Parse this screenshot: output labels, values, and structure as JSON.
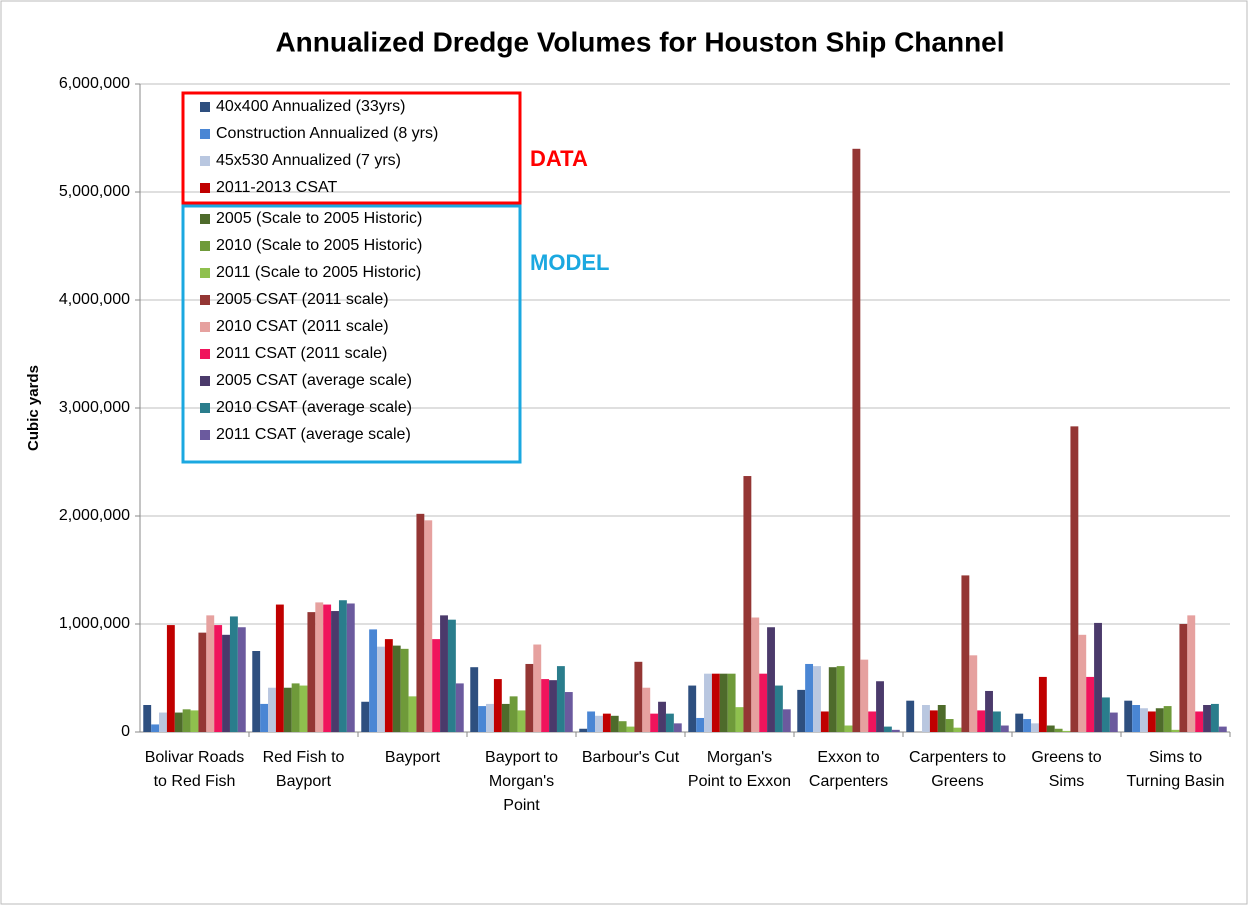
{
  "chart_data": {
    "type": "bar",
    "title": "Annualized Dredge Volumes for Houston Ship Channel",
    "y_label": "Cubic yards",
    "annotations": [
      "DATA",
      "MODEL"
    ],
    "categories": [
      "Bolivar Roads to Red Fish",
      "Red Fish to Bayport",
      "Bayport",
      "Bayport to Morgan's Point",
      "Barbour's Cut",
      "Morgan's Point to Exxon",
      "Exxon to Carpenters",
      "Carpenters to Greens",
      "Greens to Sims",
      "Sims to Turning Basin"
    ],
    "ylim": [
      0,
      6000000
    ],
    "yticks": [
      0,
      {
        "value": 1000000,
        "label": "1,000,000"
      },
      {
        "value": 2000000,
        "label": "2,000,000"
      },
      {
        "value": 3000000,
        "label": "3,000,000"
      },
      {
        "value": 4000000,
        "label": "4,000,000"
      },
      {
        "value": 5000000,
        "label": "5,000,000"
      },
      {
        "value": 6000000,
        "label": "6,000,000"
      }
    ],
    "grid": true,
    "series": [
      {
        "name": "40x400 Annualized (33yrs)",
        "color": "#2e4f7f",
        "values": [
          250000,
          750000,
          280000,
          600000,
          30000,
          430000,
          390000,
          290000,
          170000,
          290000
        ]
      },
      {
        "name": "Construction Annualized (8 yrs)",
        "color": "#4a86d4",
        "values": [
          70000,
          260000,
          950000,
          240000,
          190000,
          130000,
          630000,
          0,
          120000,
          250000
        ]
      },
      {
        "name": "45x530 Annualized (7 yrs)",
        "color": "#b9c7e0",
        "values": [
          180000,
          410000,
          790000,
          260000,
          150000,
          540000,
          610000,
          250000,
          80000,
          220000
        ]
      },
      {
        "name": "2011-2013 CSAT",
        "color": "#c00000",
        "values": [
          990000,
          1180000,
          860000,
          490000,
          170000,
          540000,
          190000,
          200000,
          510000,
          190000
        ]
      },
      {
        "name": "2005 (Scale to 2005 Historic)",
        "color": "#4e6b2b",
        "values": [
          180000,
          410000,
          800000,
          260000,
          150000,
          540000,
          600000,
          250000,
          60000,
          220000
        ]
      },
      {
        "name": "2010 (Scale to 2005 Historic)",
        "color": "#6f9a3a",
        "values": [
          210000,
          450000,
          770000,
          330000,
          100000,
          540000,
          610000,
          120000,
          30000,
          240000
        ]
      },
      {
        "name": "2011 (Scale to 2005 Historic)",
        "color": "#8fc04e",
        "values": [
          200000,
          430000,
          330000,
          200000,
          50000,
          230000,
          60000,
          40000,
          10000,
          20000
        ]
      },
      {
        "name": "2005 CSAT (2011 scale)",
        "color": "#943634",
        "values": [
          920000,
          1110000,
          2020000,
          630000,
          650000,
          2370000,
          5400000,
          1450000,
          2830000,
          1000000
        ]
      },
      {
        "name": "2010 CSAT (2011 scale)",
        "color": "#e6a19f",
        "values": [
          1080000,
          1200000,
          1960000,
          810000,
          410000,
          1060000,
          670000,
          710000,
          900000,
          1080000
        ]
      },
      {
        "name": "2011 CSAT (2011 scale)",
        "color": "#f0145c",
        "values": [
          990000,
          1180000,
          860000,
          490000,
          170000,
          540000,
          190000,
          200000,
          510000,
          190000
        ]
      },
      {
        "name": "2005 CSAT (average scale)",
        "color": "#4b3a6b",
        "values": [
          900000,
          1120000,
          1080000,
          480000,
          280000,
          970000,
          470000,
          380000,
          1010000,
          250000
        ]
      },
      {
        "name": "2010 CSAT (average scale)",
        "color": "#2a7d8c",
        "values": [
          1070000,
          1220000,
          1040000,
          610000,
          170000,
          430000,
          50000,
          190000,
          320000,
          260000
        ]
      },
      {
        "name": "2011 CSAT (average scale)",
        "color": "#6b5a9e",
        "values": [
          970000,
          1190000,
          450000,
          370000,
          80000,
          210000,
          20000,
          60000,
          180000,
          50000
        ]
      }
    ]
  }
}
